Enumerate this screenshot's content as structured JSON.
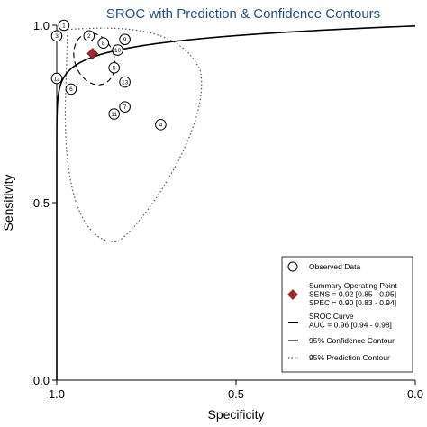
{
  "colors": {
    "title": "#1f4e8c",
    "axis": "#000000",
    "summary_point": "#a0282c",
    "prediction": "#555555",
    "background": "#ffffff"
  },
  "chart_data": {
    "type": "scatter",
    "title": "SROC with Prediction & Confidence Contours",
    "xlabel": "Specificity",
    "ylabel": "Sensitivity",
    "x_reversed": true,
    "xlim": [
      1.0,
      0.0
    ],
    "ylim": [
      0.0,
      1.0
    ],
    "x_ticks": [
      "1.0",
      "0.5",
      "0.0"
    ],
    "y_ticks": [
      "0.0",
      "0.5",
      "1.0"
    ],
    "grid": false,
    "legend_position": "bottom-right",
    "observed_studies": [
      {
        "label": "1",
        "specificity": 0.98,
        "sensitivity": 1.0
      },
      {
        "label": "2",
        "specificity": 0.91,
        "sensitivity": 0.97
      },
      {
        "label": "3",
        "specificity": 1.0,
        "sensitivity": 0.97
      },
      {
        "label": "4",
        "specificity": 0.71,
        "sensitivity": 0.72
      },
      {
        "label": "5",
        "specificity": 0.84,
        "sensitivity": 0.88
      },
      {
        "label": "6",
        "specificity": 0.96,
        "sensitivity": 0.82
      },
      {
        "label": "7",
        "specificity": 0.81,
        "sensitivity": 0.77
      },
      {
        "label": "8",
        "specificity": 0.87,
        "sensitivity": 0.95
      },
      {
        "label": "9",
        "specificity": 0.81,
        "sensitivity": 0.96
      },
      {
        "label": "10",
        "specificity": 0.83,
        "sensitivity": 0.93
      },
      {
        "label": "11",
        "specificity": 0.84,
        "sensitivity": 0.75
      },
      {
        "label": "12",
        "specificity": 1.0,
        "sensitivity": 0.85
      },
      {
        "label": "13",
        "specificity": 0.81,
        "sensitivity": 0.84
      }
    ],
    "summary_point": {
      "specificity": 0.9,
      "sensitivity": 0.92
    },
    "sroc_curve_auc": 0.96,
    "confidence_contour": {
      "specificity_range": [
        0.84,
        0.95
      ],
      "sensitivity_range": [
        0.83,
        0.98
      ]
    },
    "prediction_contour": {
      "specificity_range": [
        0.6,
        1.0
      ],
      "sensitivity_range": [
        0.39,
        1.0
      ]
    },
    "legend": [
      {
        "key": "observed",
        "lines": [
          "Observed Data"
        ]
      },
      {
        "key": "summary",
        "lines": [
          "Summary Operating Point",
          "SENS = 0.92 [0.85 - 0.95]",
          "SPEC = 0.90 [0.83 - 0.94]"
        ]
      },
      {
        "key": "sroc",
        "lines": [
          "SROC Curve",
          "AUC = 0.96 [0.94 - 0.98]"
        ]
      },
      {
        "key": "confidence",
        "lines": [
          "95% Confidence Contour"
        ]
      },
      {
        "key": "prediction",
        "lines": [
          "95% Prediction Contour"
        ]
      }
    ]
  }
}
